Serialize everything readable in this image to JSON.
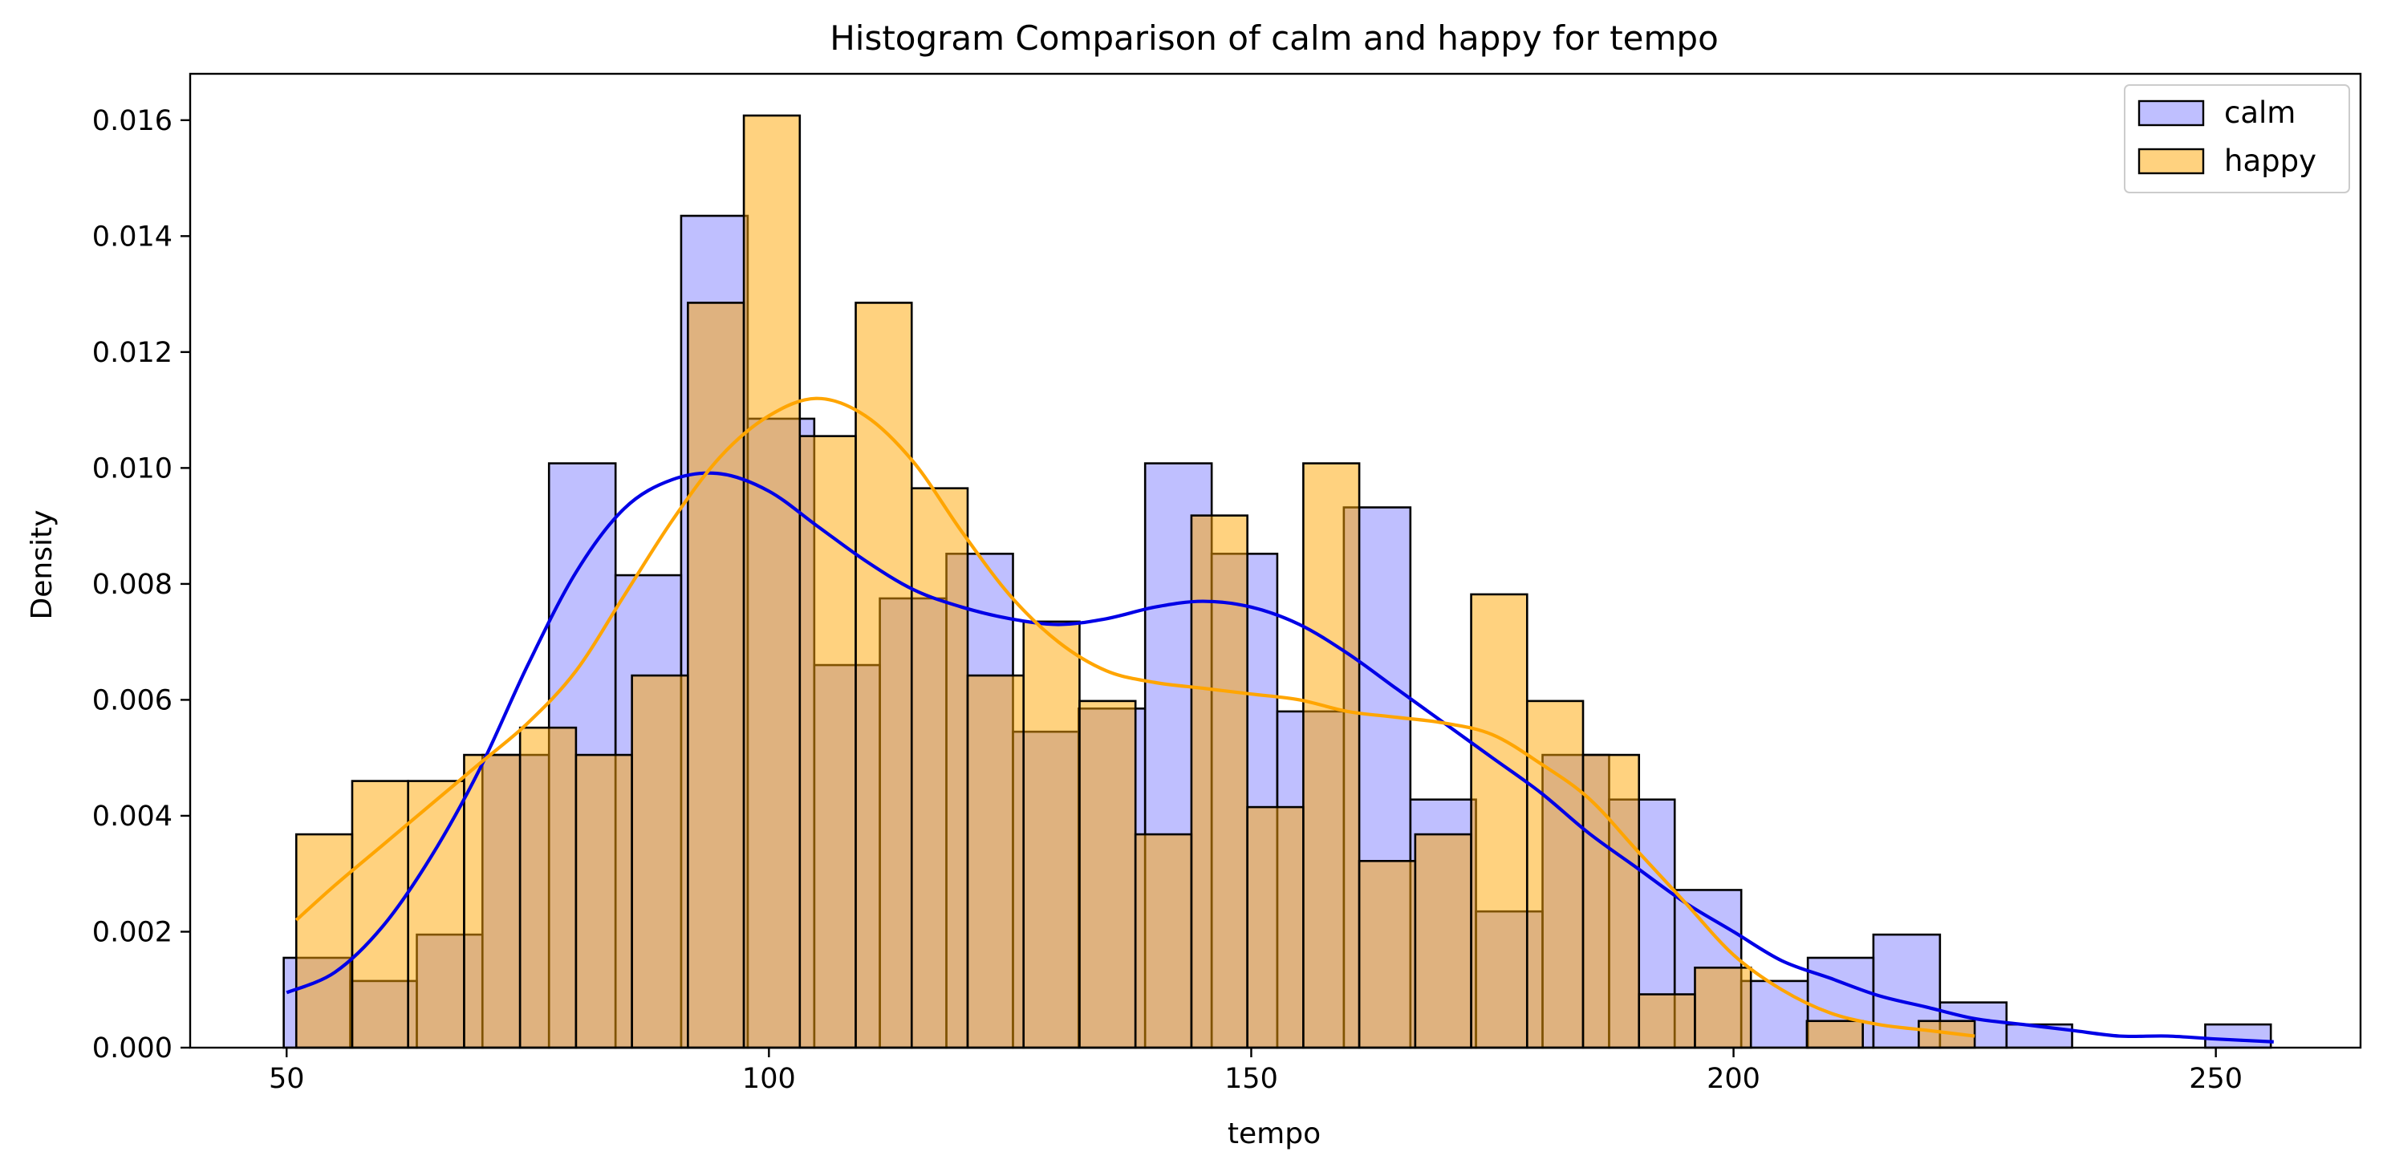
{
  "chart_data": {
    "type": "histogram",
    "title": "Histogram Comparison of calm and happy for tempo",
    "xlabel": "tempo",
    "ylabel": "Density",
    "xlim": [
      40,
      265
    ],
    "ylim": [
      0,
      0.0168
    ],
    "xticks": [
      50,
      100,
      150,
      200,
      250
    ],
    "yticks": [
      0.0,
      0.002,
      0.004,
      0.006,
      0.008,
      0.01,
      0.012,
      0.014,
      0.016
    ],
    "ytick_labels": [
      "0.000",
      "0.002",
      "0.004",
      "0.006",
      "0.008",
      "0.010",
      "0.012",
      "0.014",
      "0.016"
    ],
    "xtick_labels": [
      "50",
      "100",
      "150",
      "200",
      "250"
    ],
    "legend": {
      "position": "upper right",
      "entries": [
        "calm",
        "happy"
      ]
    },
    "grid": false,
    "series": [
      {
        "name": "calm",
        "fill": "#8080ff",
        "kde_color": "#0000e6",
        "bins": [
          [
            49.7,
            56.6,
            0.00155
          ],
          [
            56.6,
            63.5,
            0.00115
          ],
          [
            63.5,
            70.3,
            0.00195
          ],
          [
            70.3,
            77.2,
            0.00505
          ],
          [
            77.2,
            84.1,
            0.01008
          ],
          [
            84.1,
            90.9,
            0.00815
          ],
          [
            90.9,
            97.8,
            0.01435
          ],
          [
            97.8,
            104.7,
            0.01085
          ],
          [
            104.7,
            111.5,
            0.0066
          ],
          [
            111.5,
            118.4,
            0.00775
          ],
          [
            118.4,
            125.3,
            0.00852
          ],
          [
            125.3,
            132.1,
            0.00545
          ],
          [
            132.1,
            139.0,
            0.00585
          ],
          [
            139.0,
            145.9,
            0.01008
          ],
          [
            145.9,
            152.7,
            0.00852
          ],
          [
            152.7,
            159.6,
            0.0058
          ],
          [
            159.6,
            166.5,
            0.00932
          ],
          [
            166.5,
            173.3,
            0.00428
          ],
          [
            173.3,
            180.2,
            0.00235
          ],
          [
            180.2,
            187.1,
            0.00505
          ],
          [
            187.1,
            193.9,
            0.00428
          ],
          [
            193.9,
            200.8,
            0.00272
          ],
          [
            200.8,
            207.7,
            0.00115
          ],
          [
            207.7,
            214.5,
            0.00155
          ],
          [
            214.5,
            221.4,
            0.00195
          ],
          [
            221.4,
            228.3,
            0.00078
          ],
          [
            228.3,
            235.1,
            0.0004
          ],
          [
            248.9,
            255.7,
            0.0004
          ]
        ],
        "kde": [
          [
            50,
            0.00095
          ],
          [
            55,
            0.0013
          ],
          [
            60,
            0.0021
          ],
          [
            65,
            0.0033
          ],
          [
            70,
            0.0048
          ],
          [
            75,
            0.0066
          ],
          [
            80,
            0.0082
          ],
          [
            85,
            0.0093
          ],
          [
            90,
            0.0098
          ],
          [
            95,
            0.0099
          ],
          [
            100,
            0.0096
          ],
          [
            105,
            0.009
          ],
          [
            110,
            0.0084
          ],
          [
            115,
            0.0079
          ],
          [
            120,
            0.0076
          ],
          [
            125,
            0.0074
          ],
          [
            130,
            0.0073
          ],
          [
            135,
            0.0074
          ],
          [
            140,
            0.0076
          ],
          [
            145,
            0.0077
          ],
          [
            150,
            0.0076
          ],
          [
            155,
            0.0073
          ],
          [
            160,
            0.0068
          ],
          [
            165,
            0.0062
          ],
          [
            170,
            0.0056
          ],
          [
            175,
            0.005
          ],
          [
            180,
            0.0044
          ],
          [
            185,
            0.0037
          ],
          [
            190,
            0.0031
          ],
          [
            195,
            0.0025
          ],
          [
            200,
            0.002
          ],
          [
            205,
            0.0015
          ],
          [
            210,
            0.0012
          ],
          [
            215,
            0.0009
          ],
          [
            220,
            0.0007
          ],
          [
            225,
            0.0005
          ],
          [
            230,
            0.0004
          ],
          [
            235,
            0.0003
          ],
          [
            240,
            0.0002
          ],
          [
            245,
            0.0002
          ],
          [
            250,
            0.00015
          ],
          [
            256,
            0.0001
          ]
        ]
      },
      {
        "name": "happy",
        "fill": "#ffa500",
        "kde_color": "#ffa500",
        "bins": [
          [
            51.0,
            56.8,
            0.00368
          ],
          [
            56.8,
            62.6,
            0.0046
          ],
          [
            62.6,
            68.4,
            0.0046
          ],
          [
            68.4,
            74.2,
            0.00505
          ],
          [
            74.2,
            80.0,
            0.00552
          ],
          [
            80.0,
            85.8,
            0.00505
          ],
          [
            85.8,
            91.6,
            0.00642
          ],
          [
            91.6,
            97.4,
            0.01285
          ],
          [
            97.4,
            103.2,
            0.01608
          ],
          [
            103.2,
            109.0,
            0.01055
          ],
          [
            109.0,
            114.8,
            0.01285
          ],
          [
            114.8,
            120.6,
            0.00965
          ],
          [
            120.6,
            126.4,
            0.00642
          ],
          [
            126.4,
            132.2,
            0.00735
          ],
          [
            132.2,
            138.0,
            0.00598
          ],
          [
            138.0,
            143.8,
            0.00368
          ],
          [
            143.8,
            149.6,
            0.00918
          ],
          [
            149.6,
            155.4,
            0.00415
          ],
          [
            155.4,
            161.2,
            0.01008
          ],
          [
            161.2,
            167.0,
            0.00322
          ],
          [
            167.0,
            172.8,
            0.00368
          ],
          [
            172.8,
            178.6,
            0.00782
          ],
          [
            178.6,
            184.4,
            0.00598
          ],
          [
            184.4,
            190.2,
            0.00505
          ],
          [
            190.2,
            196.0,
            0.00092
          ],
          [
            196.0,
            201.8,
            0.00138
          ],
          [
            207.6,
            213.4,
            0.00046
          ],
          [
            219.2,
            225.0,
            0.00046
          ]
        ],
        "kde": [
          [
            51,
            0.0022
          ],
          [
            55,
            0.0028
          ],
          [
            60,
            0.0035
          ],
          [
            65,
            0.0042
          ],
          [
            70,
            0.0049
          ],
          [
            75,
            0.0056
          ],
          [
            80,
            0.0065
          ],
          [
            85,
            0.0078
          ],
          [
            90,
            0.0091
          ],
          [
            95,
            0.0102
          ],
          [
            100,
            0.0109
          ],
          [
            105,
            0.0112
          ],
          [
            110,
            0.0109
          ],
          [
            115,
            0.0101
          ],
          [
            120,
            0.0089
          ],
          [
            125,
            0.0078
          ],
          [
            130,
            0.007
          ],
          [
            135,
            0.0065
          ],
          [
            140,
            0.0063
          ],
          [
            145,
            0.0062
          ],
          [
            150,
            0.0061
          ],
          [
            155,
            0.006
          ],
          [
            160,
            0.0058
          ],
          [
            165,
            0.0057
          ],
          [
            170,
            0.0056
          ],
          [
            175,
            0.0054
          ],
          [
            180,
            0.0049
          ],
          [
            185,
            0.0043
          ],
          [
            190,
            0.0034
          ],
          [
            195,
            0.0025
          ],
          [
            200,
            0.0016
          ],
          [
            205,
            0.001
          ],
          [
            210,
            0.0006
          ],
          [
            215,
            0.0004
          ],
          [
            220,
            0.0003
          ],
          [
            225,
            0.0002
          ]
        ]
      }
    ]
  }
}
